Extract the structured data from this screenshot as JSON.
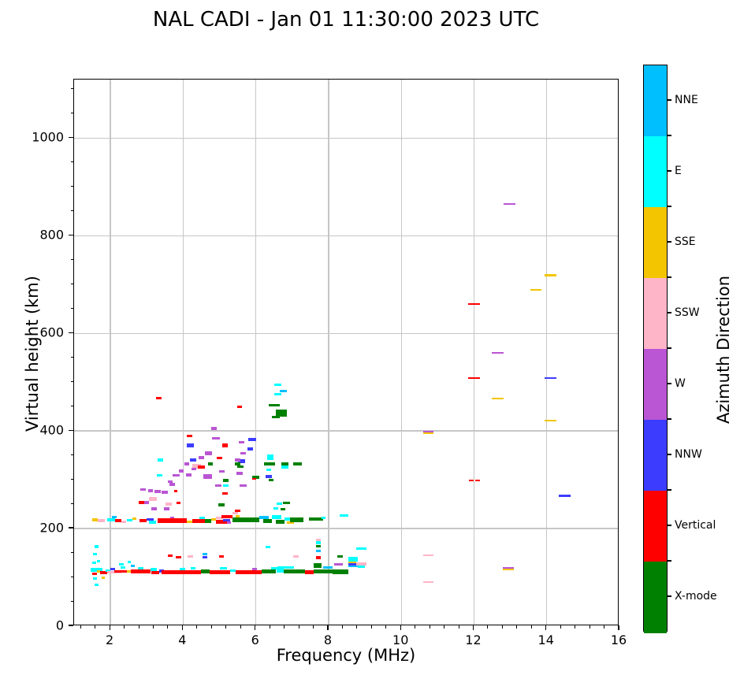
{
  "chart": {
    "title": "NAL CADI - Jan 01 11:30:00 2023 UTC",
    "xlabel": "Frequency (MHz)",
    "ylabel": "Virtual height (km)",
    "colorbar_label": "Azimuth Direction"
  },
  "chart_data": {
    "type": "scatter",
    "title": "NAL CADI - Jan 01 11:30:00 2023 UTC",
    "xlabel": "Frequency (MHz)",
    "ylabel": "Virtual height (km)",
    "xlim": [
      1,
      16
    ],
    "ylim": [
      0,
      1120
    ],
    "x_major_ticks": [
      2,
      4,
      6,
      8,
      10,
      12,
      14,
      16
    ],
    "y_major_ticks": [
      0,
      200,
      400,
      600,
      800,
      1000
    ],
    "x_minor_step": 0.4,
    "y_minor_step": 50,
    "grid": true,
    "legend_position": "right-colorbar",
    "colorbar_title": "Azimuth Direction",
    "categories_top_to_bottom": [
      {
        "name": "NNE",
        "color": "#00BFFF"
      },
      {
        "name": "E",
        "color": "#00FFFF"
      },
      {
        "name": "SSE",
        "color": "#F2C500"
      },
      {
        "name": "SSW",
        "color": "#FFB5C8"
      },
      {
        "name": "W",
        "color": "#BA55D3"
      },
      {
        "name": "NNW",
        "color": "#3C3CFF"
      },
      {
        "name": "Vertical",
        "color": "#FF0000"
      },
      {
        "name": "X-mode",
        "color": "#008000"
      }
    ],
    "runs_columns": [
      "freq_start_MHz",
      "freq_end_MHz",
      "height_km",
      "direction",
      "thickness_km"
    ],
    "runs": [
      [
        1.45,
        1.78,
        115,
        "E",
        8
      ],
      [
        1.5,
        1.62,
        108,
        "Vertical",
        5
      ],
      [
        1.62,
        1.72,
        112,
        "SSE",
        5
      ],
      [
        1.72,
        1.9,
        110,
        "Vertical",
        6
      ],
      [
        1.86,
        2.0,
        114,
        "E",
        6
      ],
      [
        1.9,
        2.3,
        110,
        "SSW",
        5
      ],
      [
        2.0,
        2.12,
        117,
        "NNW",
        5
      ],
      [
        2.1,
        2.45,
        112,
        "Vertical",
        6
      ],
      [
        2.28,
        2.4,
        120,
        "E",
        5
      ],
      [
        2.45,
        2.57,
        112,
        "SSE",
        5
      ],
      [
        2.55,
        3.1,
        112,
        "Vertical",
        7
      ],
      [
        2.75,
        2.9,
        118,
        "E",
        5
      ],
      [
        3.1,
        3.27,
        116,
        "E",
        6
      ],
      [
        3.12,
        3.35,
        110,
        "Vertical",
        6
      ],
      [
        3.35,
        3.48,
        113,
        "NNW",
        5
      ],
      [
        3.4,
        4.5,
        111,
        "Vertical",
        8
      ],
      [
        3.9,
        4.05,
        117,
        "E",
        5
      ],
      [
        4.2,
        4.33,
        118,
        "E",
        5
      ],
      [
        4.5,
        4.72,
        112,
        "X-mode",
        8
      ],
      [
        4.72,
        5.3,
        111,
        "Vertical",
        8
      ],
      [
        5.0,
        5.2,
        118,
        "E",
        5
      ],
      [
        5.3,
        5.45,
        114,
        "E",
        6
      ],
      [
        5.45,
        6.15,
        111,
        "Vertical",
        8
      ],
      [
        5.9,
        6.03,
        117,
        "W",
        4
      ],
      [
        6.15,
        6.55,
        112,
        "X-mode",
        9
      ],
      [
        6.42,
        6.6,
        119,
        "E",
        5
      ],
      [
        6.57,
        6.77,
        114,
        "E",
        7
      ],
      [
        6.6,
        7.05,
        120,
        "E",
        5
      ],
      [
        6.77,
        7.35,
        112,
        "X-mode",
        9
      ],
      [
        7.35,
        7.6,
        111,
        "Vertical",
        8
      ],
      [
        7.6,
        8.1,
        112,
        "X-mode",
        9
      ],
      [
        7.85,
        8.1,
        120,
        "NNE",
        5
      ],
      [
        8.1,
        8.55,
        111,
        "X-mode",
        9
      ],
      [
        8.55,
        8.8,
        137,
        "E",
        9
      ],
      [
        8.55,
        8.72,
        131,
        "SSE",
        4
      ],
      [
        8.55,
        8.72,
        127,
        "NNW",
        4
      ],
      [
        8.55,
        8.8,
        123,
        "NNE",
        5
      ],
      [
        8.72,
        9.05,
        127,
        "SSW",
        6
      ],
      [
        8.8,
        9.0,
        122,
        "E",
        4
      ],
      [
        8.15,
        8.4,
        127,
        "W",
        4
      ],
      [
        8.25,
        8.4,
        143,
        "X-mode",
        5
      ],
      [
        7.65,
        7.78,
        177,
        "SSW",
        4
      ],
      [
        7.65,
        7.78,
        171,
        "E",
        5
      ],
      [
        7.65,
        7.78,
        164,
        "X-mode",
        6
      ],
      [
        7.65,
        7.78,
        154,
        "NNE",
        4
      ],
      [
        7.65,
        7.78,
        140,
        "Vertical",
        6
      ],
      [
        7.6,
        7.8,
        124,
        "X-mode",
        9
      ],
      [
        1.5,
        1.64,
        218,
        "SSE",
        6
      ],
      [
        1.64,
        1.84,
        216,
        "SSW",
        6
      ],
      [
        1.9,
        2.12,
        218,
        "E",
        6
      ],
      [
        2.05,
        2.16,
        223,
        "NNE",
        5
      ],
      [
        2.12,
        2.3,
        216,
        "Vertical",
        6
      ],
      [
        2.3,
        2.42,
        214,
        "SSW",
        5
      ],
      [
        2.45,
        2.6,
        217,
        "E",
        5
      ],
      [
        2.6,
        2.72,
        220,
        "SSE",
        5
      ],
      [
        2.8,
        3.0,
        216,
        "Vertical",
        6
      ],
      [
        3.0,
        3.2,
        219,
        "NNW",
        5
      ],
      [
        3.05,
        3.25,
        213,
        "E",
        5
      ],
      [
        3.3,
        4.1,
        216,
        "Vertical",
        9
      ],
      [
        3.65,
        3.76,
        223,
        "W",
        4
      ],
      [
        4.1,
        4.25,
        214,
        "SSE",
        5
      ],
      [
        4.25,
        4.6,
        216,
        "Vertical",
        8
      ],
      [
        4.45,
        4.6,
        222,
        "E",
        5
      ],
      [
        4.6,
        4.78,
        215,
        "X-mode",
        8
      ],
      [
        4.78,
        4.9,
        219,
        "SSE",
        5
      ],
      [
        4.9,
        5.1,
        222,
        "SSW",
        5
      ],
      [
        4.9,
        5.2,
        214,
        "Vertical",
        7
      ],
      [
        5.05,
        5.35,
        224,
        "Vertical",
        6
      ],
      [
        5.1,
        5.3,
        217,
        "NNW",
        5
      ],
      [
        5.2,
        5.32,
        212,
        "W",
        4
      ],
      [
        5.35,
        6.1,
        218,
        "X-mode",
        10
      ],
      [
        5.45,
        5.56,
        225,
        "SSE",
        5
      ],
      [
        5.35,
        5.5,
        231,
        "SSW",
        5
      ],
      [
        6.1,
        6.35,
        223,
        "NNE",
        6
      ],
      [
        6.2,
        6.45,
        216,
        "X-mode",
        8
      ],
      [
        6.45,
        6.7,
        223,
        "E",
        8
      ],
      [
        6.55,
        6.78,
        214,
        "X-mode",
        8
      ],
      [
        6.78,
        6.95,
        220,
        "E",
        6
      ],
      [
        6.85,
        7.05,
        212,
        "SSE",
        5
      ],
      [
        6.95,
        7.3,
        218,
        "X-mode",
        9
      ],
      [
        7.45,
        7.85,
        219,
        "X-mode",
        6
      ],
      [
        7.8,
        7.92,
        222,
        "E",
        5
      ],
      [
        8.3,
        8.55,
        227,
        "E",
        5
      ]
    ],
    "points_columns": [
      "freq_MHz",
      "height_km",
      "direction",
      "width_MHz",
      "thickness_km"
    ],
    "points": [
      [
        1.62,
        163,
        "E",
        0.1,
        5
      ],
      [
        1.57,
        147,
        "E",
        0.1,
        5
      ],
      [
        1.67,
        133,
        "E",
        0.1,
        5
      ],
      [
        1.55,
        130,
        "E",
        0.1,
        5
      ],
      [
        1.58,
        97,
        "E",
        0.1,
        5
      ],
      [
        1.62,
        85,
        "E",
        0.1,
        5
      ],
      [
        1.8,
        99,
        "SSE",
        0.1,
        5
      ],
      [
        2.3,
        126,
        "E",
        0.14,
        5
      ],
      [
        2.52,
        131,
        "E",
        0.1,
        5
      ],
      [
        2.62,
        124,
        "NNE",
        0.1,
        5
      ],
      [
        3.65,
        145,
        "Vertical",
        0.14,
        5
      ],
      [
        3.87,
        141,
        "Vertical",
        0.14,
        5
      ],
      [
        5.05,
        143,
        "Vertical",
        0.14,
        5
      ],
      [
        4.2,
        143,
        "SSW",
        0.14,
        5
      ],
      [
        7.1,
        143,
        "SSW",
        0.14,
        5
      ],
      [
        4.6,
        148,
        "NNE",
        0.14,
        5
      ],
      [
        4.6,
        141,
        "NNW",
        0.14,
        5
      ],
      [
        8.9,
        159,
        "E",
        0.28,
        5
      ],
      [
        6.33,
        162,
        "E",
        0.14,
        5
      ],
      [
        8.65,
        131,
        "SSE",
        0.2,
        4
      ],
      [
        8.65,
        127,
        "NNW",
        0.2,
        4
      ],
      [
        2.85,
        253,
        "Vertical",
        0.14,
        6
      ],
      [
        3.0,
        253,
        "W",
        0.14,
        6
      ],
      [
        3.17,
        261,
        "SSW",
        0.2,
        8
      ],
      [
        3.1,
        278,
        "W",
        0.14,
        6
      ],
      [
        2.9,
        280,
        "W",
        0.14,
        6
      ],
      [
        3.3,
        276,
        "W",
        0.18,
        6
      ],
      [
        3.5,
        274,
        "W",
        0.18,
        6
      ],
      [
        3.6,
        250,
        "SSW",
        0.18,
        6
      ],
      [
        3.87,
        253,
        "Vertical",
        0.1,
        5
      ],
      [
        3.2,
        240,
        "W",
        0.14,
        6
      ],
      [
        3.55,
        240,
        "W",
        0.14,
        6
      ],
      [
        3.8,
        277,
        "Vertical",
        0.1,
        5
      ],
      [
        3.35,
        309,
        "E",
        0.14,
        6
      ],
      [
        3.8,
        309,
        "W",
        0.2,
        6
      ],
      [
        3.65,
        296,
        "W",
        0.14,
        6
      ],
      [
        3.37,
        340,
        "E",
        0.14,
        6
      ],
      [
        4.37,
        327,
        "SSW",
        0.25,
        10
      ],
      [
        4.5,
        326,
        "Vertical",
        0.18,
        6
      ],
      [
        4.75,
        332,
        "X-mode",
        0.14,
        6
      ],
      [
        4.27,
        341,
        "NNW",
        0.18,
        7
      ],
      [
        4.2,
        370,
        "NNW",
        0.2,
        8
      ],
      [
        4.17,
        390,
        "Vertical",
        0.16,
        5
      ],
      [
        4.7,
        355,
        "W",
        0.2,
        8
      ],
      [
        4.9,
        385,
        "W",
        0.2,
        6
      ],
      [
        4.85,
        405,
        "W",
        0.14,
        6
      ],
      [
        5.0,
        345,
        "Vertical",
        0.16,
        5
      ],
      [
        5.07,
        317,
        "W",
        0.16,
        6
      ],
      [
        4.67,
        306,
        "W",
        0.25,
        10
      ],
      [
        4.97,
        288,
        "W",
        0.16,
        6
      ],
      [
        5.17,
        298,
        "X-mode",
        0.16,
        6
      ],
      [
        5.15,
        272,
        "Vertical",
        0.16,
        5
      ],
      [
        5.17,
        288,
        "E",
        0.16,
        5
      ],
      [
        5.5,
        237,
        "Vertical",
        0.14,
        5
      ],
      [
        5.05,
        248,
        "X-mode",
        0.16,
        6
      ],
      [
        5.55,
        313,
        "W",
        0.16,
        6
      ],
      [
        5.65,
        288,
        "W",
        0.18,
        6
      ],
      [
        5.6,
        338,
        "NNW",
        0.2,
        7
      ],
      [
        5.57,
        327,
        "X-mode",
        0.18,
        6
      ],
      [
        5.65,
        354,
        "W",
        0.16,
        6
      ],
      [
        5.6,
        377,
        "W",
        0.16,
        6
      ],
      [
        5.15,
        370,
        "Vertical",
        0.15,
        8
      ],
      [
        5.9,
        382,
        "NNW",
        0.2,
        6
      ],
      [
        5.85,
        363,
        "NNW",
        0.16,
        6
      ],
      [
        5.5,
        340,
        "W",
        0.14,
        6
      ],
      [
        5.5,
        332,
        "X-mode",
        0.14,
        6
      ],
      [
        3.7,
        290,
        "W",
        0.14,
        6
      ],
      [
        3.95,
        318,
        "W",
        0.14,
        6
      ],
      [
        4.1,
        332,
        "W",
        0.14,
        6
      ],
      [
        4.5,
        345,
        "W",
        0.14,
        6
      ],
      [
        4.15,
        310,
        "W",
        0.14,
        6
      ],
      [
        4.3,
        322,
        "W",
        0.14,
        6
      ],
      [
        6.6,
        495,
        "E",
        0.2,
        5
      ],
      [
        6.75,
        482,
        "NNE",
        0.2,
        5
      ],
      [
        6.6,
        476,
        "E",
        0.2,
        5
      ],
      [
        6.5,
        453,
        "X-mode",
        0.3,
        4
      ],
      [
        6.7,
        437,
        "X-mode",
        0.3,
        14
      ],
      [
        6.55,
        428,
        "X-mode",
        0.2,
        5
      ],
      [
        5.55,
        450,
        "Vertical",
        0.14,
        5
      ],
      [
        3.33,
        467,
        "Vertical",
        0.16,
        5
      ],
      [
        6.4,
        346,
        "E",
        0.18,
        12
      ],
      [
        6.3,
        333,
        "X-mode",
        0.14,
        6
      ],
      [
        6.45,
        333,
        "X-mode",
        0.14,
        6
      ],
      [
        6.8,
        332,
        "X-mode",
        0.2,
        6
      ],
      [
        6.8,
        326,
        "E",
        0.2,
        5
      ],
      [
        7.15,
        333,
        "X-mode",
        0.25,
        6
      ],
      [
        6.35,
        320,
        "E",
        0.14,
        5
      ],
      [
        6.0,
        305,
        "X-mode",
        0.2,
        8
      ],
      [
        5.95,
        302,
        "Vertical",
        0.1,
        4
      ],
      [
        6.35,
        307,
        "NNW",
        0.18,
        6
      ],
      [
        6.42,
        299,
        "X-mode",
        0.14,
        5
      ],
      [
        6.65,
        251,
        "E",
        0.14,
        5
      ],
      [
        6.85,
        253,
        "X-mode",
        0.2,
        5
      ],
      [
        6.55,
        241,
        "E",
        0.14,
        5
      ],
      [
        6.75,
        240,
        "X-mode",
        0.14,
        5
      ],
      [
        12.97,
        865,
        "W",
        0.32,
        3.5
      ],
      [
        14.1,
        719,
        "SSE",
        0.32,
        3.5
      ],
      [
        13.7,
        689,
        "SSE",
        0.32,
        3.5
      ],
      [
        12.0,
        660,
        "Vertical",
        0.32,
        3.5
      ],
      [
        12.65,
        560,
        "W",
        0.32,
        3
      ],
      [
        12.0,
        508,
        "Vertical",
        0.32,
        3.5
      ],
      [
        14.1,
        508,
        "NNW",
        0.32,
        3.5
      ],
      [
        12.65,
        466,
        "SSE",
        0.32,
        3.5
      ],
      [
        14.1,
        421,
        "SSE",
        0.32,
        3.5
      ],
      [
        10.74,
        399,
        "W",
        0.28,
        3
      ],
      [
        10.74,
        395,
        "SSE",
        0.28,
        3
      ],
      [
        11.93,
        298,
        "Vertical",
        0.14,
        3.5
      ],
      [
        12.1,
        298,
        "Vertical",
        0.14,
        3.5
      ],
      [
        14.5,
        267,
        "NNW",
        0.32,
        3.5
      ],
      [
        10.74,
        145,
        "SSW",
        0.28,
        3.5
      ],
      [
        10.74,
        91,
        "SSW",
        0.28,
        3.5
      ],
      [
        12.95,
        120,
        "W",
        0.3,
        3.5
      ],
      [
        12.95,
        116,
        "SSE",
        0.3,
        3.5
      ]
    ]
  }
}
